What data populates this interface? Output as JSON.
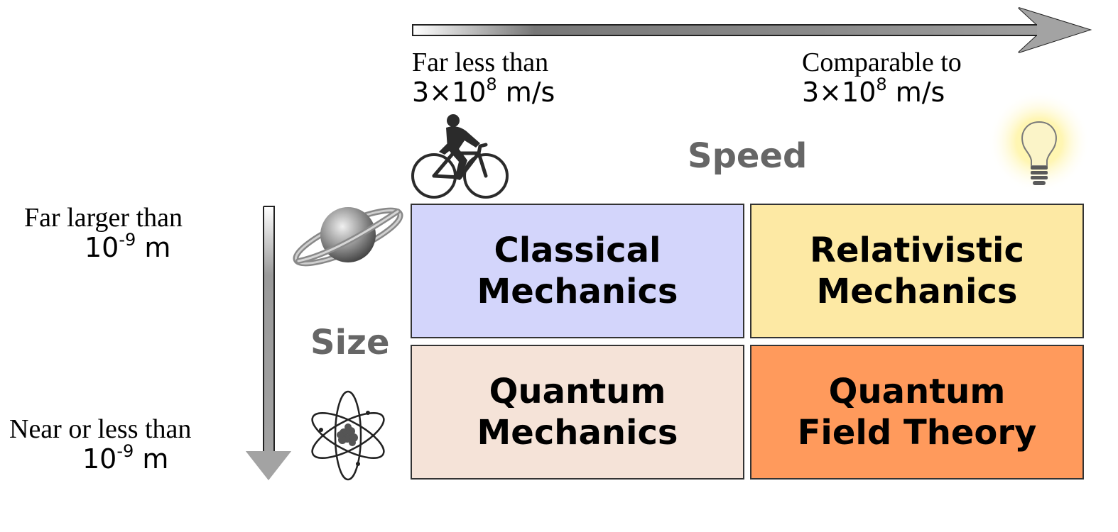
{
  "speed_axis": {
    "title": "Speed",
    "low": {
      "line1": "Far less than",
      "line2_base": "3×10",
      "line2_exp": "8",
      "line2_unit": " m/s"
    },
    "high": {
      "line1": "Comparable to",
      "line2_base": "3×10",
      "line2_exp": "8",
      "line2_unit": " m/s"
    },
    "low_icon": "bicycle-rider-icon",
    "high_icon": "light-bulb-icon"
  },
  "size_axis": {
    "title": "Size",
    "large": {
      "line1": "Far larger than",
      "line2_base": "10",
      "line2_exp": "-9",
      "line2_unit": " m"
    },
    "small": {
      "line1": "Near or less than",
      "line2_base": "10",
      "line2_exp": "-9",
      "line2_unit": " m"
    },
    "large_icon": "planet-icon",
    "small_icon": "atom-icon"
  },
  "grid": {
    "classical": {
      "line1": "Classical",
      "line2": "Mechanics",
      "color": "#d3d5fb"
    },
    "relativistic": {
      "line1": "Relativistic",
      "line2": "Mechanics",
      "color": "#fde9a4"
    },
    "quantum": {
      "line1": "Quantum",
      "line2": "Mechanics",
      "color": "#f5e3d8"
    },
    "qft": {
      "line1": "Quantum",
      "line2": "Field Theory",
      "color": "#ff9a5c"
    }
  }
}
